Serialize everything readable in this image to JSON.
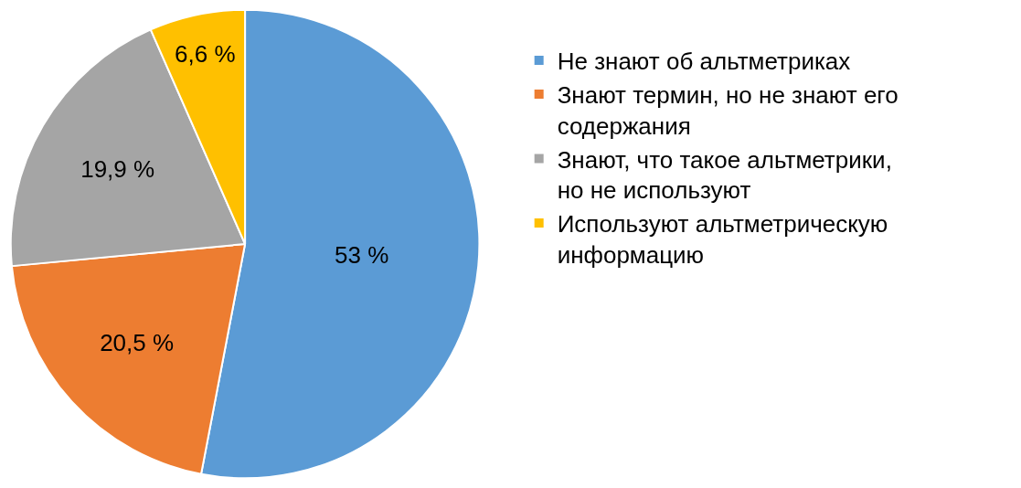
{
  "chart_data": {
    "type": "pie",
    "categories": [
      "Не знают об альтметриках",
      "Знают термин, но не знают его содержания",
      "Знают, что такое альтметрики, но не используют",
      "Используют альтметрическую информацию"
    ],
    "values": [
      53,
      20.5,
      19.9,
      6.6
    ],
    "value_labels": [
      "53 %",
      "20,5 %",
      "19,9 %",
      "6,6 %"
    ],
    "colors": [
      "#5b9bd5",
      "#ed7d31",
      "#a5a5a5",
      "#ffc000"
    ],
    "legend": "right"
  }
}
